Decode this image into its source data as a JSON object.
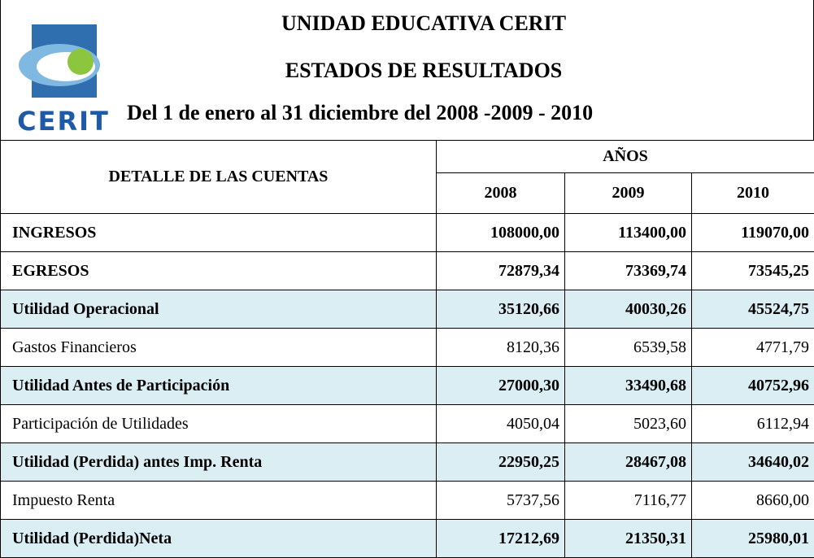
{
  "header": {
    "logo_text": "CERIT",
    "title": "UNIDAD EDUCATIVA CERIT",
    "subtitle": "ESTADOS DE RESULTADOS",
    "period": "Del 1 de enero al 31 diciembre del 2008 -2009 - 2010"
  },
  "table": {
    "label_header": "DETALLE DE LAS CUENTAS",
    "group_header": "AÑOS",
    "years": [
      "2008",
      "2009",
      "2010"
    ],
    "rows": [
      [
        "INGRESOS",
        "108000,00",
        "113400,00",
        "119070,00"
      ],
      [
        "EGRESOS",
        "72879,34",
        "73369,74",
        "73545,25"
      ],
      [
        "Utilidad Operacional",
        "35120,66",
        "40030,26",
        "45524,75"
      ],
      [
        "Gastos Financieros",
        "8120,36",
        "6539,58",
        "4771,79"
      ],
      [
        "Utilidad Antes de Participación",
        "27000,30",
        "33490,68",
        "40752,96"
      ],
      [
        "Participación de Utilidades",
        "4050,04",
        "5023,60",
        "6112,94"
      ],
      [
        "Utilidad (Perdida) antes Imp. Renta",
        "22950,25",
        "28467,08",
        "34640,02"
      ],
      [
        "Impuesto Renta",
        "5737,56",
        "7116,77",
        "8660,00"
      ],
      [
        "Utilidad (Perdida)Neta",
        "17212,69",
        "21350,31",
        "25980,01"
      ]
    ]
  }
}
